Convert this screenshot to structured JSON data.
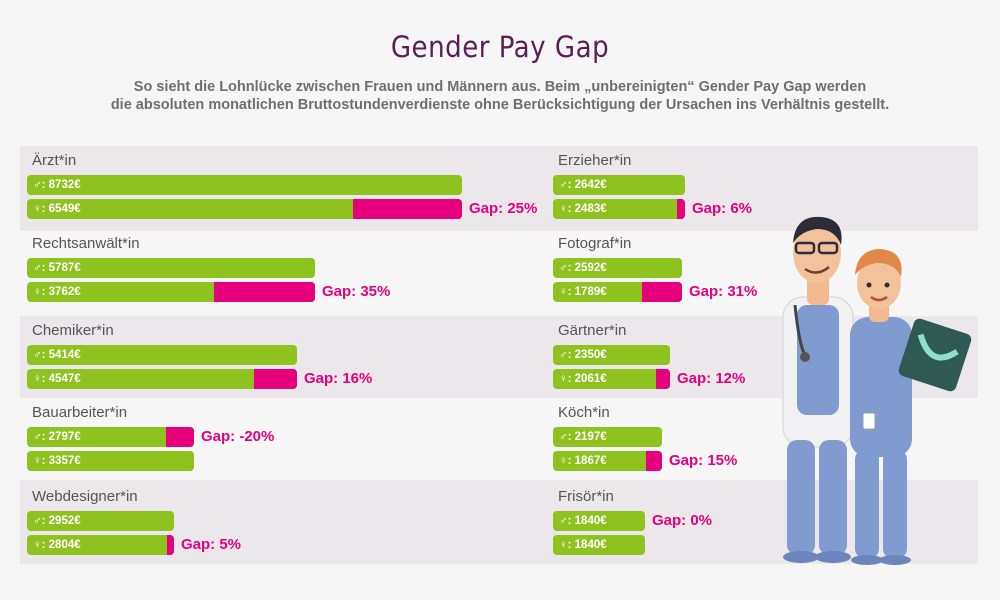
{
  "header": {
    "title": "Gender Pay Gap",
    "subtitle_line1": "So sieht die Lohnlücke zwischen Frauen und Männern aus. Beim „unbereinigten“ Gender Pay Gap werden",
    "subtitle_line2": "die absoluten monatlichen Bruttostundenverdienste ohne Berücksichtigung der Ursachen ins Verhältnis gestellt."
  },
  "colors": {
    "male_bar": "#8dc21f",
    "gap": "#e6007e",
    "title": "#5a1f55"
  },
  "chart_data": {
    "type": "bar",
    "orientation": "horizontal",
    "unit": "€",
    "series": [
      {
        "symbol": "♂",
        "name": "male"
      },
      {
        "symbol": "♀",
        "name": "female"
      }
    ],
    "groups": [
      {
        "job": "Ärzt*in",
        "male": "8732€",
        "female": "6549€",
        "m": 8732,
        "f": 6549,
        "gap": "Gap: 25%"
      },
      {
        "job": "Rechtsanwält*in",
        "male": "5787€",
        "female": "3762€",
        "m": 5787,
        "f": 3762,
        "gap": "Gap: 35%"
      },
      {
        "job": "Chemiker*in",
        "male": "5414€",
        "female": "4547€",
        "m": 5414,
        "f": 4547,
        "gap": "Gap: 16%"
      },
      {
        "job": "Bauarbeiter*in",
        "male": "2797€",
        "female": "3357€",
        "m": 2797,
        "f": 3357,
        "gap": "Gap: -20%"
      },
      {
        "job": "Webdesigner*in",
        "male": "2952€",
        "female": "2804€",
        "m": 2952,
        "f": 2804,
        "gap": "Gap: 5%"
      },
      {
        "job": "Erzieher*in",
        "male": "2642€",
        "female": "2483€",
        "m": 2642,
        "f": 2483,
        "gap": "Gap: 6%"
      },
      {
        "job": "Fotograf*in",
        "male": "2592€",
        "female": "1789€",
        "m": 2592,
        "f": 1789,
        "gap": "Gap: 31%"
      },
      {
        "job": "Gärtner*in",
        "male": "2350€",
        "female": "2061€",
        "m": 2350,
        "f": 2061,
        "gap": "Gap: 12%"
      },
      {
        "job": "Köch*in",
        "male": "2197€",
        "female": "1867€",
        "m": 2197,
        "f": 1867,
        "gap": "Gap: 15%"
      },
      {
        "job": "Frisör*in",
        "male": "1840€",
        "female": "1840€",
        "m": 1840,
        "f": 1840,
        "gap": "Gap: 0%"
      }
    ]
  }
}
